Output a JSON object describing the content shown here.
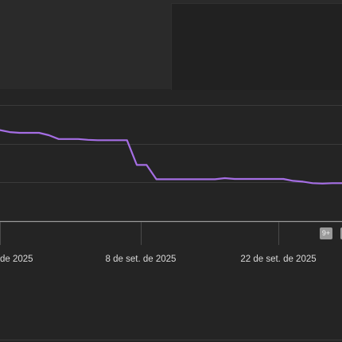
{
  "chart_data": {
    "type": "line",
    "x_tick_labels": [
      "de 2025",
      "8 de set. de 2025",
      "22 de set. de 2025"
    ],
    "series": [
      {
        "color": "#a56ee4",
        "x": [
          0,
          1,
          2,
          3,
          4,
          5,
          6,
          7,
          8,
          9,
          10,
          11,
          12,
          13,
          14,
          15,
          16,
          17,
          18,
          19,
          20,
          21,
          22,
          23,
          24,
          25,
          26,
          27,
          28,
          29,
          30,
          31,
          32,
          33,
          34,
          35
        ],
        "values": [
          4.35,
          4.3,
          4.28,
          4.28,
          4.28,
          4.22,
          4.12,
          4.12,
          4.12,
          4.1,
          4.09,
          4.09,
          4.09,
          4.09,
          3.45,
          3.45,
          3.08,
          3.08,
          3.08,
          3.08,
          3.08,
          3.08,
          3.08,
          3.11,
          3.09,
          3.09,
          3.09,
          3.09,
          3.09,
          3.09,
          3.04,
          3.02,
          2.98,
          2.97,
          2.98,
          2.98
        ]
      }
    ],
    "xlim": [
      0,
      35
    ],
    "ylim": [
      2,
      5
    ],
    "grid": true,
    "legend": "none"
  },
  "badges": {
    "count": "9+"
  },
  "colors": {
    "background": "#242424",
    "grid": "#3a3a3a",
    "axis": "#9a9a9a",
    "line": "#a56ee4",
    "text": "#d9d9d9"
  }
}
